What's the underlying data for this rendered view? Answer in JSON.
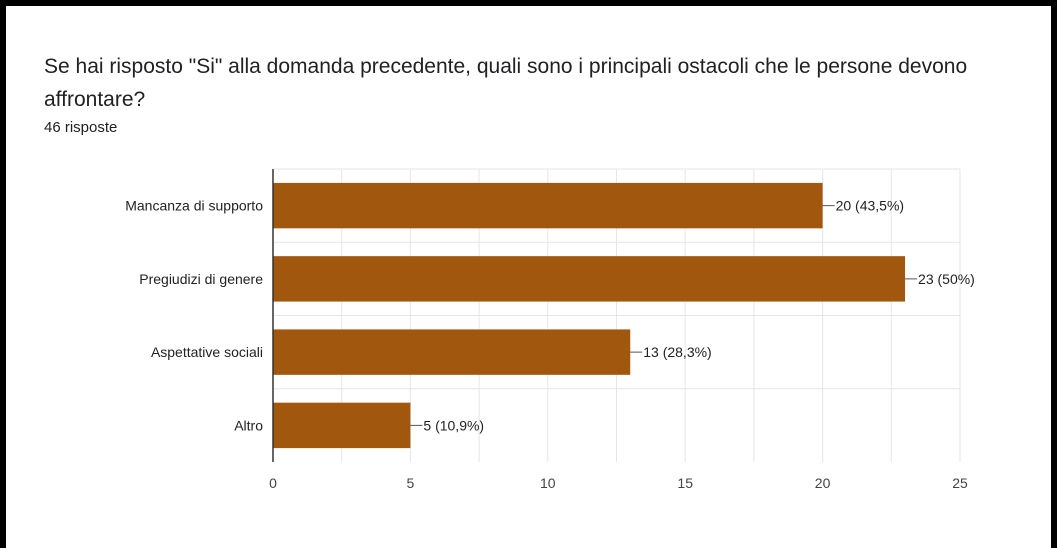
{
  "question": {
    "title": "Se hai risposto \"Si\" alla domanda precedente, quali sono i principali ostacoli che le persone devono affrontare?",
    "responses": "46 risposte"
  },
  "colors": {
    "bar": "#a1570d",
    "grid": "#e6e6e6",
    "axis": "#333333"
  },
  "chart_data": {
    "type": "bar",
    "orientation": "horizontal",
    "title": "",
    "xlabel": "",
    "ylabel": "",
    "categories": [
      "Mancanza di supporto",
      "Pregiudizi di genere",
      "Aspettative sociali",
      "Altro"
    ],
    "values": [
      20,
      23,
      13,
      5
    ],
    "data_labels": [
      "20 (43,5%)",
      "23 (50%)",
      "13 (28,3%)",
      "5 (10,9%)"
    ],
    "xlim": [
      0,
      25
    ],
    "xticks": [
      "0",
      "5",
      "10",
      "15",
      "20",
      "25"
    ],
    "grid": true,
    "legend": "none"
  }
}
